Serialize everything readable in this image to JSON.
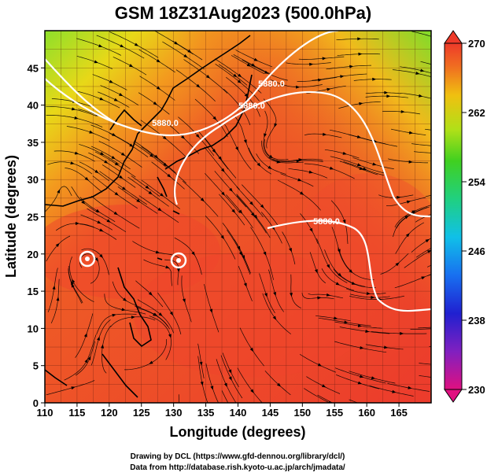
{
  "title": "GSM 18Z31Aug2023 (500.0hPa)",
  "map": {
    "xlabel": "Longitude (degrees)",
    "ylabel": "Latitude  (degrees)",
    "xticks": [
      "110",
      "115",
      "120",
      "125",
      "130",
      "135",
      "140",
      "145",
      "150",
      "155",
      "160",
      "165"
    ],
    "yticks": [
      "0",
      "5",
      "10",
      "15",
      "20",
      "25",
      "30",
      "35",
      "40",
      "45"
    ],
    "xrange": [
      110,
      170
    ],
    "yrange": [
      0,
      50
    ],
    "contours": [
      {
        "label": "5880.0",
        "level": 5880
      },
      {
        "label": "5880.0",
        "level": 5880
      },
      {
        "label": "5880.0",
        "level": 5880
      },
      {
        "label": "5880.0",
        "level": 5880
      }
    ]
  },
  "colorbar": {
    "ticks": [
      "270",
      "262",
      "254",
      "246",
      "238",
      "230"
    ],
    "range": [
      230,
      270
    ],
    "colors": [
      "#e01080",
      "#4010c0",
      "#1850f0",
      "#10b8e0",
      "#20d070",
      "#40d020",
      "#a0e020",
      "#f0d010",
      "#f08010",
      "#ee3a2a"
    ]
  },
  "credits": {
    "line1": "Drawing by DCL (https://www.gfd-dennou.org/library/dcl/)",
    "line2": "Data from http://database.rish.kyoto-u.ac.jp/arch/jmadata/"
  }
}
